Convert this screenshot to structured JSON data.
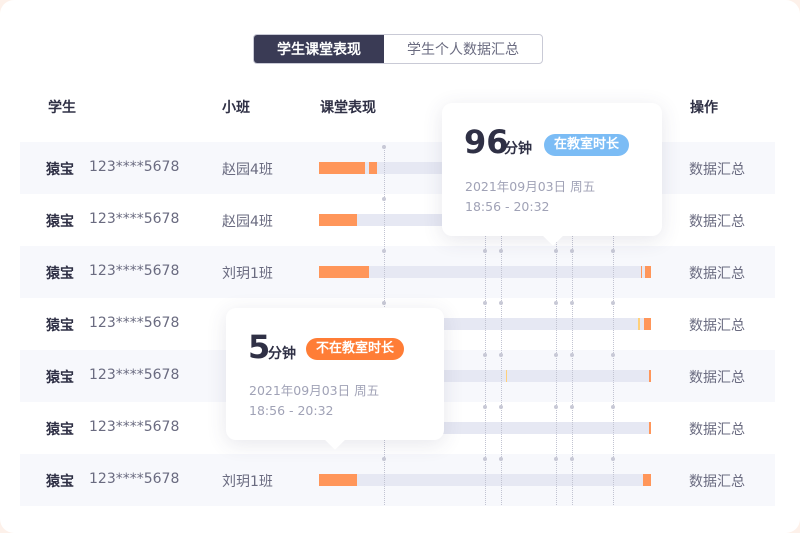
{
  "tabs": [
    "学生课堂表现",
    "学生个人数据汇总"
  ],
  "headers": {
    "student": "学生",
    "class": "小班",
    "performance": "课堂表现",
    "action": "操作"
  },
  "rows": [
    {
      "name": "猿宝",
      "phone": "123****5678",
      "class": "赵园4班",
      "action": "数据汇总",
      "segments": [
        [
          0,
          14,
          "o"
        ],
        [
          15,
          17.5,
          "o"
        ]
      ]
    },
    {
      "name": "猿宝",
      "phone": "123****5678",
      "class": "赵园4班",
      "action": "数据汇总",
      "segments": [
        [
          0,
          11.5,
          "o"
        ]
      ]
    },
    {
      "name": "猿宝",
      "phone": "123****5678",
      "class": "刘玥1班",
      "action": "数据汇总",
      "segments": [
        [
          0,
          15,
          "o"
        ],
        [
          97,
          97.4,
          "o"
        ],
        [
          98.3,
          100,
          "o"
        ]
      ]
    },
    {
      "name": "猿宝",
      "phone": "123****5678",
      "class": "",
      "action": "数据汇总",
      "segments": [
        [
          96.2,
          96.6,
          "y"
        ],
        [
          97.9,
          100,
          "o"
        ]
      ]
    },
    {
      "name": "猿宝",
      "phone": "123****5678",
      "class": "",
      "action": "数据汇总",
      "segments": [
        [
          56.3,
          56.7,
          "y"
        ],
        [
          99.5,
          100,
          "o"
        ]
      ]
    },
    {
      "name": "猿宝",
      "phone": "123****5678",
      "class": "",
      "action": "数据汇总",
      "segments": [
        [
          99.4,
          100,
          "o"
        ]
      ]
    },
    {
      "name": "猿宝",
      "phone": "123****5678",
      "class": "刘玥1班",
      "action": "数据汇总",
      "segments": [
        [
          0,
          11.5,
          "o"
        ],
        [
          97.5,
          100,
          "o"
        ]
      ]
    }
  ],
  "tooltip_in": {
    "value": "96",
    "unit": "分钟",
    "badge": "在教室时长",
    "badge_color": "#7bbcf5",
    "date": "2021年09月03日  周五",
    "time": "18:56 - 20:32"
  },
  "tooltip_out": {
    "value": "5",
    "unit": "分钟",
    "badge": "不在教室时长",
    "badge_color": "#ff7d36",
    "date": "2021年09月03日  周五",
    "time": "18:56 - 20:32"
  }
}
